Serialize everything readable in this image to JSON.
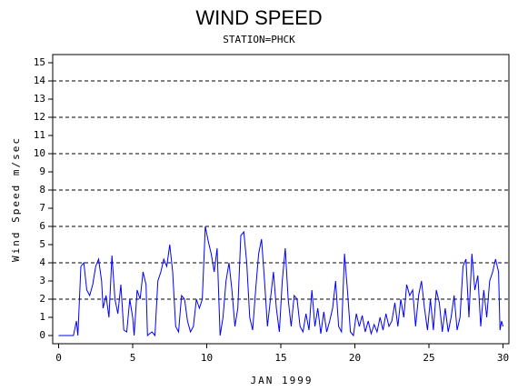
{
  "chart_data": {
    "type": "line",
    "title": "WIND SPEED",
    "subtitle": "STATION=PHCK",
    "x_label": "JAN 1999",
    "y_label": "Wind Speed m/sec",
    "xlim": [
      -0.4,
      30.4
    ],
    "xticks": [
      0,
      5,
      10,
      15,
      20,
      25,
      30
    ],
    "ylim": [
      -0.45,
      15.45
    ],
    "yticks": [
      0,
      1,
      2,
      3,
      4,
      5,
      6,
      7,
      8,
      9,
      10,
      11,
      12,
      13,
      14,
      15
    ],
    "grid_lines": [
      2,
      4,
      6,
      8,
      10,
      12,
      14
    ],
    "series": [
      {
        "color": "#0000ff",
        "x": [
          0,
          0.5,
          1.0,
          1.2,
          1.3,
          1.5,
          1.7,
          1.9,
          2.1,
          2.3,
          2.5,
          2.7,
          2.9,
          3.0,
          3.2,
          3.4,
          3.6,
          3.8,
          4.0,
          4.2,
          4.4,
          4.6,
          4.8,
          5.0,
          5.1,
          5.3,
          5.5,
          5.7,
          5.9,
          6.0,
          6.3,
          6.5,
          6.7,
          6.9,
          7.1,
          7.3,
          7.5,
          7.7,
          7.9,
          8.1,
          8.3,
          8.5,
          8.7,
          8.9,
          9.1,
          9.3,
          9.5,
          9.7,
          9.9,
          10.1,
          10.3,
          10.5,
          10.7,
          10.9,
          11.1,
          11.3,
          11.5,
          11.7,
          11.9,
          12.1,
          12.3,
          12.5,
          12.7,
          12.9,
          13.1,
          13.3,
          13.5,
          13.7,
          13.9,
          14.1,
          14.3,
          14.5,
          14.7,
          14.9,
          15.1,
          15.3,
          15.5,
          15.7,
          15.9,
          16.1,
          16.3,
          16.5,
          16.7,
          16.9,
          17.1,
          17.3,
          17.5,
          17.7,
          17.9,
          18.1,
          18.3,
          18.5,
          18.7,
          18.9,
          19.1,
          19.3,
          19.5,
          19.7,
          19.9,
          20.1,
          20.3,
          20.5,
          20.7,
          20.9,
          21.1,
          21.3,
          21.5,
          21.7,
          21.9,
          22.1,
          22.3,
          22.5,
          22.7,
          22.9,
          23.1,
          23.3,
          23.5,
          23.7,
          23.9,
          24.1,
          24.3,
          24.5,
          24.7,
          24.9,
          25.1,
          25.3,
          25.5,
          25.7,
          25.9,
          26.1,
          26.3,
          26.5,
          26.7,
          26.9,
          27.1,
          27.3,
          27.5,
          27.7,
          27.9,
          28.1,
          28.3,
          28.5,
          28.7,
          28.9,
          29.1,
          29.3,
          29.5,
          29.7,
          29.8,
          29.9,
          30.0
        ],
        "values": [
          0,
          0,
          0,
          0.8,
          0,
          3.8,
          4.0,
          2.5,
          2.2,
          2.8,
          3.8,
          4.2,
          3.0,
          1.5,
          2.2,
          1.0,
          4.4,
          2.0,
          1.2,
          2.8,
          0.3,
          0.2,
          2.0,
          1.0,
          0,
          2.5,
          2.0,
          3.5,
          2.8,
          0,
          0.2,
          0,
          3.0,
          3.5,
          4.2,
          3.8,
          5.0,
          3.5,
          0.5,
          0.2,
          2.2,
          2.0,
          0.8,
          0.2,
          0.5,
          2.0,
          1.5,
          2.0,
          6.0,
          5.2,
          4.5,
          3.5,
          4.8,
          0,
          1.0,
          3.0,
          4.0,
          2.5,
          0.5,
          1.5,
          5.5,
          5.7,
          4.0,
          1.0,
          0.3,
          2.5,
          4.5,
          5.3,
          3.0,
          0.5,
          2.0,
          3.5,
          1.5,
          0.2,
          3.0,
          4.8,
          2.0,
          0.5,
          2.2,
          2.0,
          0.5,
          0.2,
          1.2,
          0.3,
          2.5,
          0.5,
          1.5,
          0.1,
          1.3,
          0.2,
          0.8,
          1.5,
          3.0,
          0.5,
          0.2,
          4.5,
          2.5,
          0.2,
          0,
          1.2,
          0.5,
          1.1,
          0.2,
          0.8,
          0.1,
          0.6,
          0.2,
          1.0,
          0.3,
          1.2,
          0.5,
          0.8,
          1.8,
          0.5,
          2.0,
          1.0,
          2.8,
          2.2,
          2.5,
          0.5,
          2.2,
          3.0,
          1.5,
          0.3,
          2.0,
          0.3,
          2.5,
          1.8,
          0.2,
          1.5,
          0.2,
          1.0,
          2.2,
          0.3,
          1.0,
          3.8,
          4.2,
          1.0,
          4.5,
          2.5,
          3.3,
          0.5,
          2.5,
          1.0,
          3.0,
          3.5,
          4.2,
          3.5,
          0.3,
          0.8,
          0.5
        ]
      }
    ]
  }
}
